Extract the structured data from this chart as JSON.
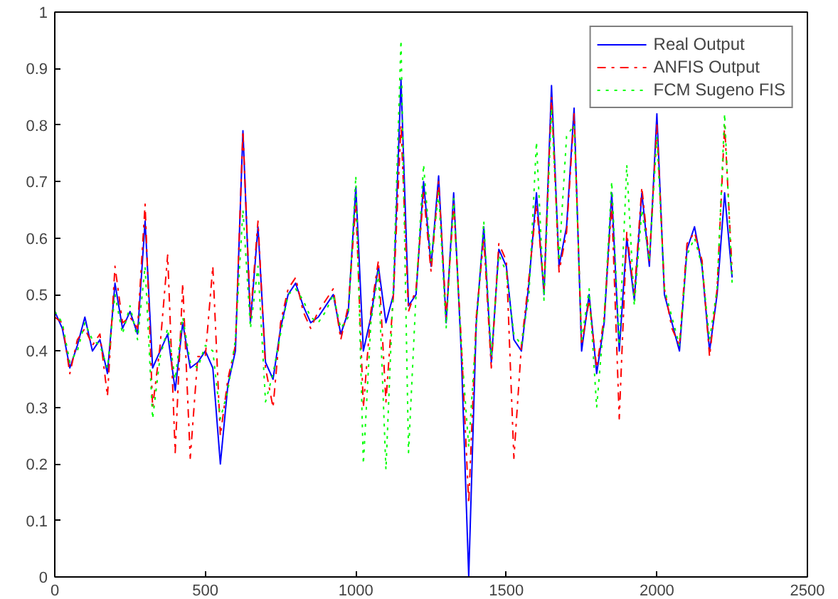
{
  "chart_data": {
    "type": "line",
    "x": [
      0,
      25,
      50,
      75,
      100,
      125,
      150,
      175,
      200,
      225,
      250,
      275,
      300,
      325,
      350,
      375,
      400,
      425,
      450,
      475,
      500,
      525,
      550,
      575,
      600,
      625,
      650,
      675,
      700,
      725,
      750,
      775,
      800,
      825,
      850,
      875,
      900,
      925,
      950,
      975,
      1000,
      1025,
      1050,
      1075,
      1100,
      1125,
      1150,
      1175,
      1200,
      1225,
      1250,
      1275,
      1300,
      1325,
      1350,
      1375,
      1400,
      1425,
      1450,
      1475,
      1500,
      1525,
      1550,
      1575,
      1600,
      1625,
      1650,
      1675,
      1700,
      1725,
      1750,
      1775,
      1800,
      1825,
      1850,
      1875,
      1900,
      1925,
      1950,
      1975,
      2000,
      2025,
      2050,
      2075,
      2100,
      2125,
      2150,
      2175,
      2200,
      2225,
      2250
    ],
    "series": [
      {
        "name": "Real Output",
        "color": "#0000ff",
        "line_style": "solid",
        "values": [
          0.47,
          0.44,
          0.37,
          0.41,
          0.46,
          0.4,
          0.42,
          0.36,
          0.52,
          0.44,
          0.47,
          0.43,
          0.63,
          0.37,
          0.4,
          0.43,
          0.33,
          0.45,
          0.37,
          0.38,
          0.4,
          0.37,
          0.2,
          0.34,
          0.4,
          0.79,
          0.45,
          0.62,
          0.38,
          0.35,
          0.44,
          0.5,
          0.52,
          0.48,
          0.45,
          0.46,
          0.48,
          0.5,
          0.43,
          0.47,
          0.69,
          0.4,
          0.46,
          0.55,
          0.45,
          0.5,
          0.88,
          0.48,
          0.5,
          0.7,
          0.55,
          0.71,
          0.45,
          0.68,
          0.4,
          0.0,
          0.45,
          0.62,
          0.38,
          0.58,
          0.55,
          0.42,
          0.4,
          0.52,
          0.68,
          0.5,
          0.87,
          0.55,
          0.62,
          0.83,
          0.4,
          0.5,
          0.36,
          0.45,
          0.68,
          0.4,
          0.6,
          0.49,
          0.68,
          0.55,
          0.82,
          0.5,
          0.45,
          0.4,
          0.58,
          0.62,
          0.55,
          0.4,
          0.5,
          0.68,
          0.53
        ]
      },
      {
        "name": "ANFIS Output",
        "color": "#ff0000",
        "line_style": "dashdot",
        "values": [
          0.46,
          0.45,
          0.36,
          0.42,
          0.44,
          0.41,
          0.43,
          0.32,
          0.55,
          0.45,
          0.46,
          0.44,
          0.66,
          0.3,
          0.41,
          0.57,
          0.22,
          0.52,
          0.21,
          0.39,
          0.39,
          0.55,
          0.25,
          0.35,
          0.41,
          0.79,
          0.46,
          0.63,
          0.37,
          0.3,
          0.45,
          0.51,
          0.53,
          0.47,
          0.44,
          0.47,
          0.49,
          0.51,
          0.42,
          0.48,
          0.66,
          0.3,
          0.47,
          0.56,
          0.31,
          0.5,
          0.8,
          0.47,
          0.51,
          0.68,
          0.54,
          0.7,
          0.46,
          0.66,
          0.42,
          0.13,
          0.46,
          0.6,
          0.37,
          0.59,
          0.56,
          0.21,
          0.41,
          0.53,
          0.66,
          0.51,
          0.85,
          0.54,
          0.61,
          0.82,
          0.41,
          0.49,
          0.37,
          0.46,
          0.66,
          0.28,
          0.61,
          0.5,
          0.69,
          0.56,
          0.8,
          0.51,
          0.44,
          0.41,
          0.59,
          0.61,
          0.56,
          0.39,
          0.51,
          0.8,
          0.54
        ]
      },
      {
        "name": "FCM Sugeno FIS",
        "color": "#00ff00",
        "line_style": "dotted",
        "values": [
          0.47,
          0.45,
          0.38,
          0.4,
          0.45,
          0.42,
          0.41,
          0.37,
          0.5,
          0.43,
          0.48,
          0.42,
          0.55,
          0.28,
          0.39,
          0.44,
          0.35,
          0.46,
          0.38,
          0.37,
          0.41,
          0.4,
          0.28,
          0.33,
          0.42,
          0.65,
          0.44,
          0.55,
          0.31,
          0.36,
          0.43,
          0.5,
          0.51,
          0.49,
          0.46,
          0.45,
          0.47,
          0.5,
          0.44,
          0.46,
          0.71,
          0.2,
          0.45,
          0.54,
          0.19,
          0.52,
          0.95,
          0.22,
          0.5,
          0.73,
          0.56,
          0.68,
          0.44,
          0.67,
          0.41,
          0.23,
          0.44,
          0.63,
          0.39,
          0.57,
          0.54,
          0.43,
          0.41,
          0.5,
          0.77,
          0.49,
          0.83,
          0.56,
          0.78,
          0.8,
          0.42,
          0.51,
          0.3,
          0.46,
          0.7,
          0.41,
          0.73,
          0.48,
          0.65,
          0.56,
          0.78,
          0.51,
          0.46,
          0.41,
          0.57,
          0.6,
          0.55,
          0.42,
          0.51,
          0.82,
          0.52
        ]
      }
    ],
    "xlim": [
      0,
      2500
    ],
    "ylim": [
      0,
      1
    ],
    "xticks": [
      0,
      500,
      1000,
      1500,
      2000,
      2500
    ],
    "yticks": [
      0,
      0.1,
      0.2,
      0.3,
      0.4,
      0.5,
      0.6,
      0.7,
      0.8,
      0.9,
      1
    ],
    "grid": false,
    "legend": "top right"
  }
}
